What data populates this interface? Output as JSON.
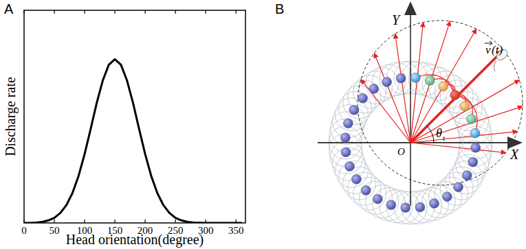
{
  "panel_labels": [
    "A",
    "B"
  ],
  "chart_data": {
    "type": "line",
    "x_label": "Head orientation(degree)",
    "y_label": "Discharge rate",
    "x": [
      0,
      10,
      20,
      30,
      40,
      50,
      60,
      70,
      80,
      90,
      100,
      110,
      120,
      130,
      140,
      150,
      160,
      170,
      180,
      190,
      200,
      210,
      220,
      230,
      240,
      250,
      260,
      270,
      280,
      290,
      300,
      310,
      320,
      330,
      340,
      350,
      360
    ],
    "values": [
      0,
      0,
      0.002,
      0.005,
      0.012,
      0.024,
      0.047,
      0.084,
      0.141,
      0.221,
      0.324,
      0.442,
      0.564,
      0.67,
      0.744,
      0.77,
      0.744,
      0.67,
      0.564,
      0.442,
      0.324,
      0.221,
      0.141,
      0.084,
      0.047,
      0.024,
      0.012,
      0.005,
      0.002,
      0.001,
      0,
      0,
      0,
      0,
      0,
      0,
      0
    ],
    "xlim": [
      0,
      360
    ],
    "xticks": [
      0,
      50,
      100,
      150,
      200,
      250,
      300,
      350
    ],
    "ylim": [
      0,
      1
    ],
    "tick_labels": "x",
    "color": "#000000"
  },
  "diagram": {
    "x_axis": "X",
    "y_axis": "Y",
    "origin": "O",
    "angle": "θ",
    "angle_sub": "t",
    "vector": "v",
    "vector_arg": "(t)"
  }
}
